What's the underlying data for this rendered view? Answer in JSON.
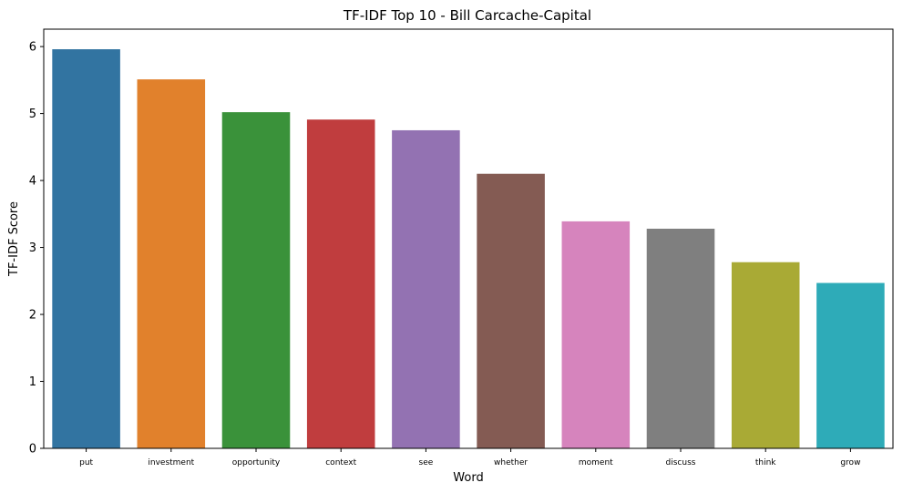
{
  "chart_data": {
    "type": "bar",
    "title": "TF-IDF Top 10 - Bill Carcache-Capital",
    "xlabel": "Word",
    "ylabel": "TF-IDF Score",
    "categories": [
      "put",
      "investment",
      "opportunity",
      "context",
      "see",
      "whether",
      "moment",
      "discuss",
      "think",
      "grow"
    ],
    "values": [
      5.96,
      5.51,
      5.02,
      4.91,
      4.75,
      4.1,
      3.39,
      3.28,
      2.78,
      2.47
    ],
    "colors": [
      "#3274a1",
      "#e1812c",
      "#3a923a",
      "#c03d3e",
      "#9372b2",
      "#845b53",
      "#d684bd",
      "#7f7f7f",
      "#a9aa35",
      "#2eabb8"
    ],
    "yticks": [
      0,
      1,
      2,
      3,
      4,
      5,
      6
    ],
    "ylim": [
      0,
      6.26
    ],
    "grid": false,
    "legend": "none"
  }
}
